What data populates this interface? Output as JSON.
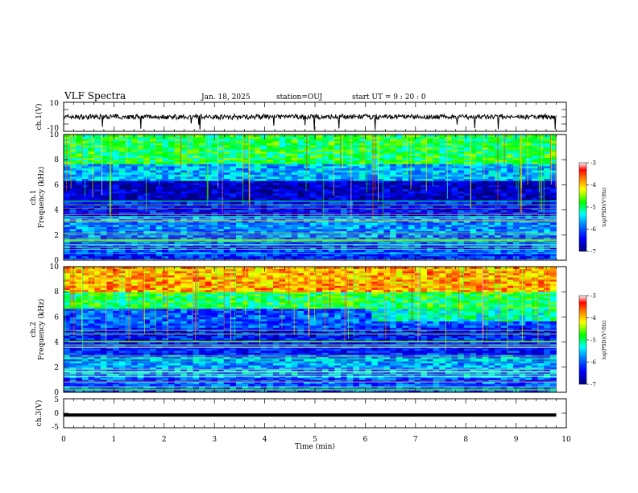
{
  "header": {
    "title": "VLF Spectra",
    "date": "Jan. 18, 2025",
    "station": "station=OUJ",
    "start": "start  UT =   9 : 20 : 0"
  },
  "chart_data": [
    {
      "type": "line",
      "panel": "ch1-waveform",
      "ylabel": "ch.1(V)",
      "ylim": [
        -10,
        10
      ],
      "y_tick_labels": [
        "10",
        "-10"
      ],
      "xlim": [
        0,
        10
      ],
      "signal_level": 0,
      "signal_range": [
        -2,
        2
      ],
      "signal_end_min": 9.8
    },
    {
      "type": "heatmap",
      "panel": "ch1-spectrogram",
      "ylabel": "ch.1\nFrequency (kHz)",
      "ylim": [
        0,
        10
      ],
      "y_tick_labels": [
        "0",
        "2",
        "4",
        "6",
        "8",
        "10"
      ],
      "xlim": [
        0,
        10
      ],
      "data_end_min": 9.8,
      "colorbar": {
        "label": "log(PSD)(V²/Hz)",
        "range": [
          -7,
          -3
        ],
        "tick_labels": [
          "-3",
          "-4",
          "-5",
          "-6",
          "-7"
        ]
      },
      "bands": [
        {
          "f_low": 0,
          "f_high": 0.5,
          "level": -6.2
        },
        {
          "f_low": 0.5,
          "f_high": 1.5,
          "level": -6.0
        },
        {
          "f_low": 1.5,
          "f_high": 3.5,
          "level": -5.8
        },
        {
          "f_low": 3.5,
          "f_high": 4.7,
          "level": -6.3
        },
        {
          "f_low": 4.7,
          "f_high": 6.4,
          "level": -6.7
        },
        {
          "f_low": 6.4,
          "f_high": 7.6,
          "level": -5.6
        },
        {
          "f_low": 7.6,
          "f_high": 10,
          "level": -4.9
        }
      ]
    },
    {
      "type": "heatmap",
      "panel": "ch2-spectrogram",
      "ylabel": "ch.2\nFrequency (kHz)",
      "ylim": [
        0,
        10
      ],
      "y_tick_labels": [
        "0",
        "2",
        "4",
        "6",
        "8",
        "10"
      ],
      "xlim": [
        0,
        10
      ],
      "data_end_min": 9.8,
      "colorbar": {
        "label": "log(PSD)(V²/Hz)",
        "range": [
          -7,
          -3
        ],
        "tick_labels": [
          "-3",
          "-4",
          "-5",
          "-6",
          "-7"
        ]
      },
      "bands": [
        {
          "f_low": 0,
          "f_high": 1.2,
          "level": -6.0
        },
        {
          "f_low": 1.2,
          "f_high": 3.0,
          "level": -5.7
        },
        {
          "f_low": 3.0,
          "f_high": 5.2,
          "level": -6.3
        },
        {
          "f_low": 5.2,
          "f_high": 6.6,
          "level": -6.0
        },
        {
          "f_low": 6.6,
          "f_high": 8.0,
          "level": -4.9
        },
        {
          "f_low": 8.0,
          "f_high": 10,
          "level": -3.9
        }
      ],
      "features": [
        {
          "name": "cyan band after 6 min",
          "t_start": 6.1,
          "t_end": 9.8,
          "f_low": 5.6,
          "f_high": 6.6,
          "level": -5.2
        }
      ]
    },
    {
      "type": "line",
      "panel": "ch3-waveform",
      "ylabel": "ch.3(V)",
      "ylim": [
        -5,
        5
      ],
      "y_tick_labels": [
        "5",
        "0",
        "-5"
      ],
      "xlim": [
        0,
        10
      ],
      "signal_level": -0.6,
      "signal_end_min": 9.8
    }
  ],
  "x_axis": {
    "label": "Time (min)",
    "tick_labels": [
      "0",
      "1",
      "2",
      "3",
      "4",
      "5",
      "6",
      "7",
      "8",
      "9",
      "10"
    ]
  },
  "colors": {
    "colormap": [
      "#00007f",
      "#0000ff",
      "#0080ff",
      "#00ffff",
      "#00ff00",
      "#ffff00",
      "#ff8000",
      "#ff0000",
      "#ffffff"
    ],
    "axis": "#000000"
  }
}
